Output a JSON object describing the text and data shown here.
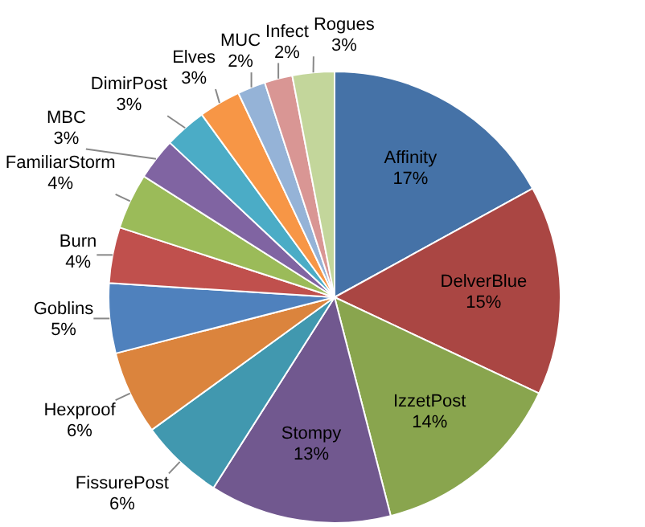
{
  "chart_data": {
    "type": "pie",
    "categories": [
      "Affinity",
      "DelverBlue",
      "IzzetPost",
      "Stompy",
      "FissurePost",
      "Hexproof",
      "Goblins",
      "Burn",
      "FamiliarStorm",
      "MBC",
      "DimirPost",
      "Elves",
      "MUC",
      "Infect",
      "Rogues"
    ],
    "values": [
      17,
      15,
      14,
      13,
      6,
      6,
      5,
      4,
      4,
      3,
      3,
      3,
      2,
      2,
      3
    ],
    "value_labels": [
      "17%",
      "15%",
      "14%",
      "13%",
      "6%",
      "6%",
      "5%",
      "4%",
      "4%",
      "3%",
      "3%",
      "3%",
      "2%",
      "2%",
      "3%"
    ],
    "colors": [
      "#4572a7",
      "#aa4643",
      "#89a54e",
      "#71588f",
      "#4198af",
      "#db843d",
      "#4f81bd",
      "#c0504d",
      "#9bbb59",
      "#8064a2",
      "#4bacc6",
      "#f79646",
      "#95b3d7",
      "#d99694",
      "#c3d69b"
    ],
    "legend": false
  }
}
